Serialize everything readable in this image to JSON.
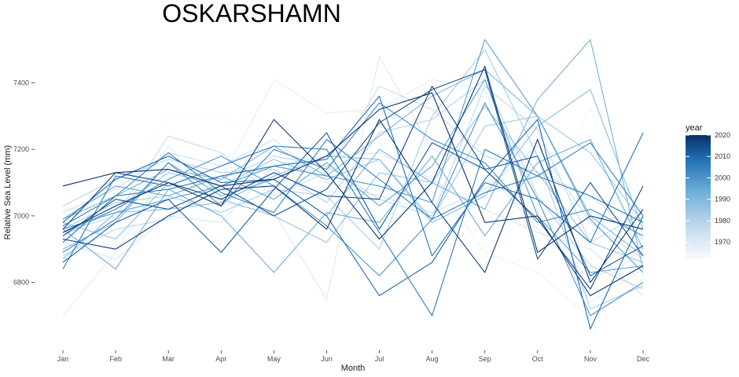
{
  "chart_data": {
    "type": "line",
    "title": "OSKARSHAMN",
    "xlabel": "Month",
    "ylabel": "Relative Sea Level (mm)",
    "categories": [
      "Jan",
      "Feb",
      "Mar",
      "Apr",
      "May",
      "Jun",
      "Jul",
      "Aug",
      "Sep",
      "Oct",
      "Nov",
      "Dec"
    ],
    "ylim": [
      6610,
      7550
    ],
    "yticks": [
      6800,
      7000,
      7200,
      7400
    ],
    "grid": false,
    "legend": {
      "title": "year",
      "position": "right",
      "type": "colorbar",
      "range": [
        1962,
        2020
      ],
      "ticks": [
        1970,
        1980,
        1990,
        2000,
        2010,
        2020
      ],
      "colors": [
        "#f7fbff",
        "#c6dbef",
        "#6baed6",
        "#2171b5",
        "#08306b"
      ]
    },
    "series": [
      {
        "year": 1962,
        "values": [
          7050,
          7060,
          7300,
          7290,
          7280,
          7250,
          7220,
          7260,
          7500,
          7170,
          7150,
          7100
        ]
      },
      {
        "year": 1964,
        "values": [
          6980,
          7010,
          7080,
          7060,
          7130,
          7120,
          7160,
          7230,
          7390,
          7050,
          7320,
          6990
        ]
      },
      {
        "year": 1966,
        "values": [
          7020,
          7030,
          7120,
          7080,
          7090,
          7070,
          7080,
          7120,
          6890,
          6830,
          6690,
          6810
        ]
      },
      {
        "year": 1968,
        "values": [
          6700,
          6890,
          7150,
          7110,
          7410,
          7310,
          7320,
          7410,
          7380,
          7010,
          6740,
          6840
        ]
      },
      {
        "year": 1970,
        "values": [
          6930,
          6990,
          7210,
          7040,
          7010,
          6750,
          7480,
          7200,
          7140,
          6960,
          6810,
          6880
        ]
      },
      {
        "year": 1972,
        "values": [
          6920,
          6870,
          7000,
          6980,
          7150,
          7180,
          7190,
          7110,
          7020,
          6950,
          6900,
          6760
        ]
      },
      {
        "year": 1974,
        "values": [
          7010,
          7080,
          7190,
          7150,
          7230,
          7100,
          7060,
          7010,
          7080,
          7210,
          6980,
          6870
        ]
      },
      {
        "year": 1976,
        "values": [
          6950,
          7000,
          7240,
          7190,
          7060,
          7130,
          7390,
          7320,
          7180,
          7130,
          7060,
          6930
        ]
      },
      {
        "year": 1978,
        "values": [
          6880,
          6960,
          6990,
          7110,
          7180,
          7150,
          7050,
          7000,
          7390,
          7260,
          6920,
          7010
        ]
      },
      {
        "year": 1980,
        "values": [
          7030,
          7110,
          7170,
          7130,
          7140,
          7040,
          7250,
          7290,
          7410,
          7060,
          6850,
          6780
        ]
      },
      {
        "year": 1982,
        "values": [
          6960,
          7040,
          7060,
          7010,
          7080,
          7060,
          6900,
          7300,
          7500,
          7180,
          6720,
          6790
        ]
      },
      {
        "year": 1984,
        "values": [
          6940,
          7020,
          7130,
          7090,
          7170,
          7110,
          7170,
          6990,
          7270,
          7300,
          7190,
          6980
        ]
      },
      {
        "year": 1986,
        "values": [
          6980,
          6930,
          7100,
          7050,
          7000,
          6920,
          7130,
          7100,
          7330,
          7130,
          6920,
          6860
        ]
      },
      {
        "year": 1988,
        "values": [
          6870,
          7010,
          7020,
          7040,
          7120,
          7180,
          7170,
          6980,
          7060,
          7270,
          7380,
          6960
        ]
      },
      {
        "year": 1990,
        "values": [
          6990,
          7060,
          7140,
          7110,
          7210,
          7120,
          7240,
          7360,
          7440,
          7300,
          7000,
          6880
        ]
      },
      {
        "year": 1992,
        "values": [
          6900,
          6980,
          7160,
          7060,
          7110,
          7000,
          7200,
          7100,
          7020,
          7350,
          7530,
          6840
        ]
      },
      {
        "year": 1994,
        "values": [
          6960,
          6840,
          7080,
          7000,
          6830,
          7010,
          6980,
          7180,
          6940,
          7160,
          7230,
          6900
        ]
      },
      {
        "year": 1996,
        "values": [
          6990,
          7090,
          7060,
          7120,
          7050,
          7160,
          7030,
          7150,
          7410,
          7000,
          6830,
          6850
        ]
      },
      {
        "year": 1998,
        "values": [
          6960,
          7010,
          7050,
          7090,
          7150,
          7120,
          7090,
          7040,
          7530,
          7300,
          6990,
          6830
        ]
      },
      {
        "year": 2000,
        "values": [
          6950,
          7020,
          7110,
          7180,
          7090,
          6970,
          6820,
          6990,
          7340,
          7050,
          6700,
          6800
        ]
      },
      {
        "year": 2002,
        "values": [
          6890,
          6990,
          7160,
          7030,
          7200,
          7140,
          7340,
          7230,
          7160,
          6980,
          7020,
          6940
        ]
      },
      {
        "year": 2004,
        "values": [
          6970,
          7060,
          7190,
          7070,
          7010,
          7230,
          7110,
          6990,
          7070,
          7120,
          7220,
          7000
        ]
      },
      {
        "year": 2006,
        "values": [
          6840,
          7120,
          7090,
          7150,
          7210,
          7200,
          6950,
          6700,
          7200,
          7120,
          7060,
          6980
        ]
      },
      {
        "year": 2008,
        "values": [
          6920,
          7060,
          7080,
          7120,
          7150,
          7170,
          7360,
          6880,
          7100,
          7050,
          6920,
          7250
        ]
      },
      {
        "year": 2010,
        "values": [
          6980,
          7110,
          7180,
          7100,
          7110,
          7000,
          6760,
          6860,
          7110,
          7290,
          6660,
          7000
        ]
      },
      {
        "year": 2012,
        "values": [
          6860,
          6980,
          7050,
          6890,
          7080,
          7250,
          6960,
          7220,
          7140,
          7180,
          6820,
          6910
        ]
      },
      {
        "year": 2014,
        "values": [
          6940,
          7050,
          7020,
          7090,
          7000,
          7080,
          7280,
          7380,
          7440,
          6870,
          7100,
          6880
        ]
      },
      {
        "year": 2016,
        "values": [
          6960,
          7130,
          7100,
          7050,
          7130,
          7060,
          7050,
          7390,
          7140,
          6990,
          6780,
          7090
        ]
      },
      {
        "year": 2018,
        "values": [
          6930,
          6900,
          7000,
          7080,
          7090,
          6960,
          7290,
          7040,
          6830,
          7230,
          6800,
          7020
        ]
      },
      {
        "year": 2019,
        "values": [
          6950,
          7030,
          7100,
          7030,
          7290,
          7130,
          6930,
          7100,
          7450,
          6890,
          7000,
          6960
        ]
      },
      {
        "year": 2020,
        "values": [
          7090,
          7130,
          7140,
          7090,
          7110,
          7180,
          7320,
          7370,
          6980,
          7000,
          6760,
          6850
        ]
      }
    ]
  }
}
